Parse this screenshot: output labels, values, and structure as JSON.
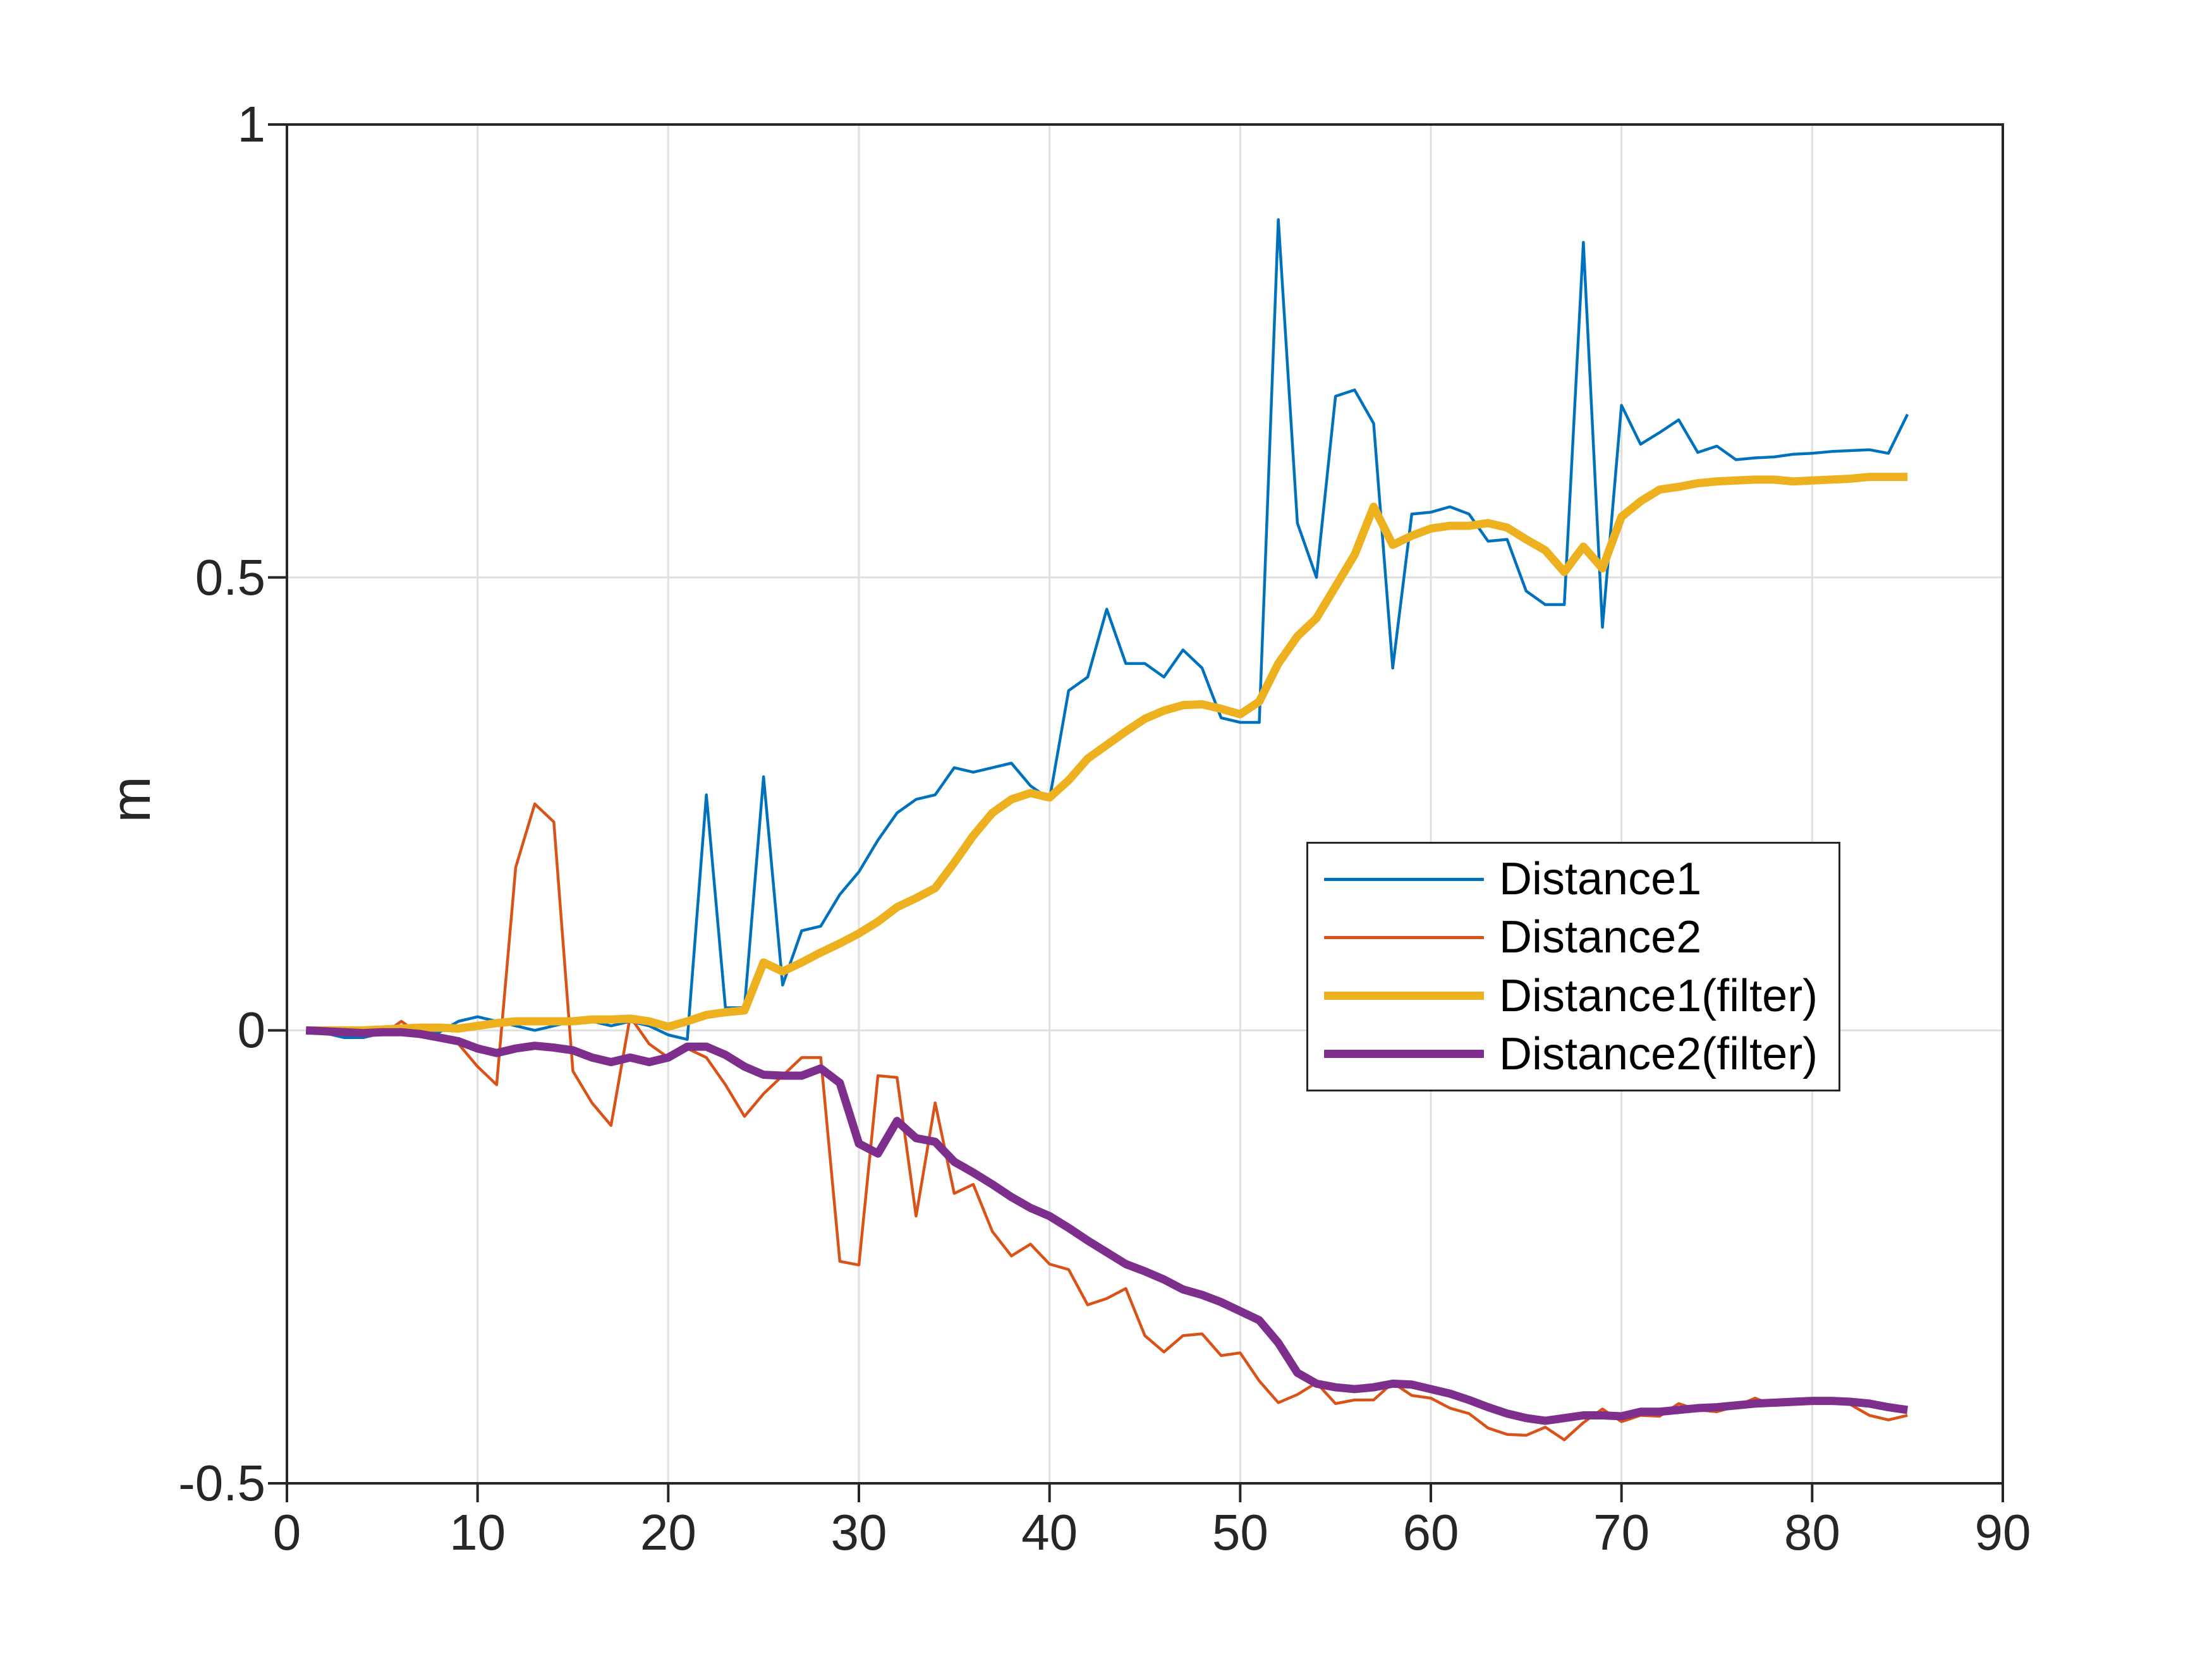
{
  "figure": {
    "background": "#ffffff"
  },
  "axes": {
    "ylabel": "m",
    "xlim": [
      0,
      90
    ],
    "ylim": [
      -0.5,
      1
    ],
    "xticks": [
      0,
      10,
      20,
      30,
      40,
      50,
      60,
      70,
      80,
      90
    ],
    "xtick_labels": [
      "0",
      "10",
      "20",
      "30",
      "40",
      "50",
      "60",
      "70",
      "80",
      "90"
    ],
    "yticks": [
      -0.5,
      0,
      0.5,
      1
    ],
    "ytick_labels": [
      "-0.5",
      "0",
      "0.5",
      "1"
    ],
    "grid": true,
    "axis_color": "#262626",
    "grid_color": "#e0e0e0",
    "tick_label_color": "#262626"
  },
  "legend": {
    "position": "middle-right",
    "border_color": "#262626",
    "background": "#ffffff",
    "entries": [
      {
        "label": "Distance1",
        "color": "#0072BD",
        "thick": false
      },
      {
        "label": "Distance2",
        "color": "#D95319",
        "thick": false
      },
      {
        "label": "Distance1(filter)",
        "color": "#EDB120",
        "thick": true
      },
      {
        "label": "Distance2(filter)",
        "color": "#7E2F8E",
        "thick": true
      }
    ]
  },
  "chart_data": {
    "type": "line",
    "title": "",
    "xlabel": "",
    "ylabel": "m",
    "xlim": [
      0,
      90
    ],
    "ylim": [
      -0.5,
      1
    ],
    "grid": true,
    "legend_position": "middle-right",
    "x": [
      1,
      2,
      3,
      4,
      5,
      6,
      7,
      8,
      9,
      10,
      11,
      12,
      13,
      14,
      15,
      16,
      17,
      18,
      19,
      20,
      21,
      22,
      23,
      24,
      25,
      26,
      27,
      28,
      29,
      30,
      31,
      32,
      33,
      34,
      35,
      36,
      37,
      38,
      39,
      40,
      41,
      42,
      43,
      44,
      45,
      46,
      47,
      48,
      49,
      50,
      51,
      52,
      53,
      54,
      55,
      56,
      57,
      58,
      59,
      60,
      61,
      62,
      63,
      64,
      65,
      66,
      67,
      68,
      69,
      70,
      71,
      72,
      73,
      74,
      75,
      76,
      77,
      78,
      79,
      80,
      81,
      82,
      83,
      84,
      85
    ],
    "series": [
      {
        "name": "Distance1",
        "color": "#0072BD",
        "width": 4.5,
        "values": [
          0.0,
          -0.003,
          -0.008,
          -0.008,
          -0.003,
          0.0,
          -0.003,
          -0.002,
          0.01,
          0.015,
          0.01,
          0.005,
          0.0,
          0.005,
          0.01,
          0.01,
          0.005,
          0.01,
          0.005,
          -0.005,
          -0.01,
          0.26,
          0.025,
          0.025,
          0.28,
          0.05,
          0.11,
          0.115,
          0.15,
          0.175,
          0.21,
          0.24,
          0.255,
          0.26,
          0.29,
          0.285,
          0.29,
          0.295,
          0.27,
          0.255,
          0.375,
          0.39,
          0.465,
          0.405,
          0.405,
          0.39,
          0.42,
          0.4,
          0.345,
          0.34,
          0.34,
          0.895,
          0.56,
          0.5,
          0.7,
          0.707,
          0.67,
          0.4,
          0.57,
          0.572,
          0.578,
          0.57,
          0.54,
          0.542,
          0.485,
          0.47,
          0.47,
          0.87,
          0.445,
          0.69,
          0.647,
          0.66,
          0.674,
          0.638,
          0.645,
          0.63,
          0.632,
          0.633,
          0.636,
          0.637,
          0.639,
          0.64,
          0.641,
          0.637,
          0.68
        ]
      },
      {
        "name": "Distance2",
        "color": "#D95319",
        "width": 4.5,
        "values": [
          0.0,
          -0.004,
          -0.005,
          -0.002,
          -0.005,
          0.01,
          -0.005,
          -0.01,
          -0.015,
          -0.04,
          -0.06,
          0.18,
          0.25,
          0.23,
          -0.045,
          -0.08,
          -0.105,
          0.015,
          -0.015,
          -0.03,
          -0.02,
          -0.03,
          -0.06,
          -0.095,
          -0.07,
          -0.05,
          -0.03,
          -0.03,
          -0.255,
          -0.259,
          -0.05,
          -0.052,
          -0.205,
          -0.08,
          -0.18,
          -0.17,
          -0.222,
          -0.249,
          -0.236,
          -0.258,
          -0.264,
          -0.303,
          -0.296,
          -0.285,
          -0.337,
          -0.355,
          -0.337,
          -0.335,
          -0.359,
          -0.356,
          -0.387,
          -0.411,
          -0.402,
          -0.389,
          -0.412,
          -0.408,
          -0.408,
          -0.389,
          -0.403,
          -0.406,
          -0.417,
          -0.423,
          -0.439,
          -0.446,
          -0.447,
          -0.438,
          -0.452,
          -0.433,
          -0.418,
          -0.432,
          -0.425,
          -0.426,
          -0.412,
          -0.419,
          -0.421,
          -0.415,
          -0.406,
          -0.414,
          -0.413,
          -0.412,
          -0.411,
          -0.413,
          -0.425,
          -0.43,
          -0.425
        ]
      },
      {
        "name": "Distance1(filter)",
        "color": "#EDB120",
        "width": 13,
        "values": [
          0.0,
          0.0,
          0.0,
          0.0,
          0.001,
          0.002,
          0.003,
          0.003,
          0.002,
          0.005,
          0.008,
          0.01,
          0.01,
          0.01,
          0.01,
          0.012,
          0.012,
          0.013,
          0.01,
          0.004,
          0.01,
          0.017,
          0.02,
          0.022,
          0.075,
          0.065,
          0.075,
          0.086,
          0.096,
          0.107,
          0.12,
          0.136,
          0.146,
          0.157,
          0.185,
          0.215,
          0.24,
          0.255,
          0.262,
          0.257,
          0.276,
          0.3,
          0.315,
          0.33,
          0.344,
          0.353,
          0.359,
          0.36,
          0.355,
          0.349,
          0.363,
          0.405,
          0.435,
          0.455,
          0.49,
          0.525,
          0.578,
          0.536,
          0.546,
          0.554,
          0.557,
          0.557,
          0.56,
          0.555,
          0.542,
          0.53,
          0.506,
          0.534,
          0.51,
          0.567,
          0.584,
          0.597,
          0.6,
          0.604,
          0.606,
          0.607,
          0.608,
          0.608,
          0.606,
          0.607,
          0.608,
          0.609,
          0.611,
          0.611,
          0.611
        ]
      },
      {
        "name": "Distance2(filter)",
        "color": "#7E2F8E",
        "width": 13,
        "values": [
          0.0,
          -0.001,
          -0.002,
          -0.003,
          -0.002,
          -0.002,
          -0.004,
          -0.008,
          -0.012,
          -0.02,
          -0.025,
          -0.02,
          -0.017,
          -0.019,
          -0.022,
          -0.03,
          -0.035,
          -0.03,
          -0.035,
          -0.03,
          -0.018,
          -0.018,
          -0.027,
          -0.04,
          -0.049,
          -0.05,
          -0.05,
          -0.042,
          -0.058,
          -0.125,
          -0.136,
          -0.1,
          -0.119,
          -0.123,
          -0.145,
          -0.157,
          -0.17,
          -0.184,
          -0.196,
          -0.205,
          -0.218,
          -0.232,
          -0.245,
          -0.258,
          -0.266,
          -0.275,
          -0.286,
          -0.292,
          -0.3,
          -0.31,
          -0.32,
          -0.345,
          -0.378,
          -0.39,
          -0.394,
          -0.396,
          -0.394,
          -0.39,
          -0.391,
          -0.396,
          -0.401,
          -0.408,
          -0.416,
          -0.423,
          -0.428,
          -0.431,
          -0.428,
          -0.425,
          -0.425,
          -0.426,
          -0.421,
          -0.421,
          -0.419,
          -0.417,
          -0.416,
          -0.414,
          -0.412,
          -0.411,
          -0.41,
          -0.409,
          -0.409,
          -0.41,
          -0.412,
          -0.416,
          -0.419
        ]
      }
    ]
  }
}
